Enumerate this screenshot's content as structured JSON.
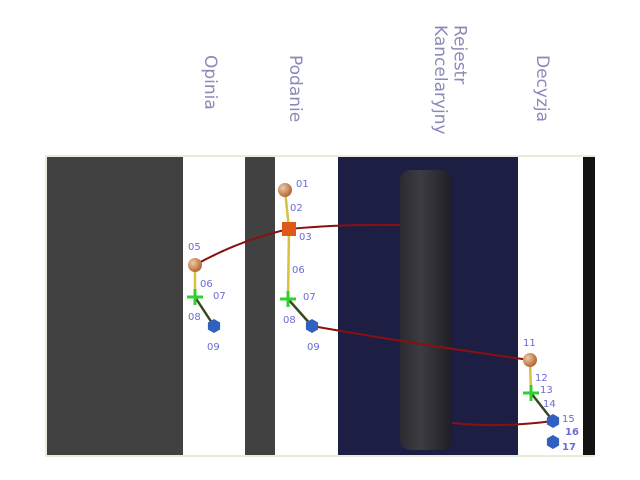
{
  "columns": [
    "Opinia",
    "Podanie",
    "Rejestr Kancelaryjny",
    "Decyzja"
  ],
  "nodes": [
    {
      "label": "05"
    },
    {
      "label": "06"
    },
    {
      "label": "07"
    },
    {
      "label": "08"
    },
    {
      "label": "09"
    },
    {
      "label": "01"
    },
    {
      "label": "02"
    },
    {
      "label": "03"
    },
    {
      "label": "06"
    },
    {
      "label": "07"
    },
    {
      "label": "08"
    },
    {
      "label": "09"
    },
    {
      "label": "11"
    },
    {
      "label": "12"
    },
    {
      "label": "13"
    },
    {
      "label": "14"
    },
    {
      "label": "15"
    },
    {
      "label": "16"
    },
    {
      "label": "17"
    }
  ]
}
